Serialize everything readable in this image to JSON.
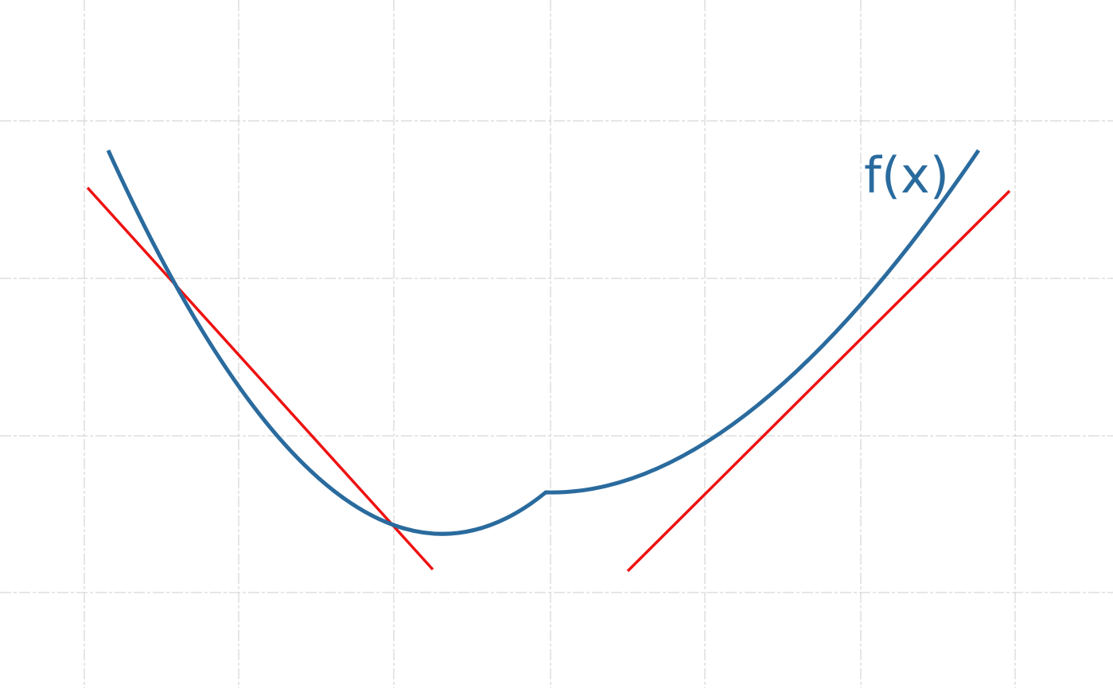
{
  "figure": {
    "function_label": "f(x)",
    "colors": {
      "curve": "#2a6b9e",
      "tangent": "#ee1111",
      "grid": "#d6d6d6",
      "background": "#ffffff"
    }
  }
}
